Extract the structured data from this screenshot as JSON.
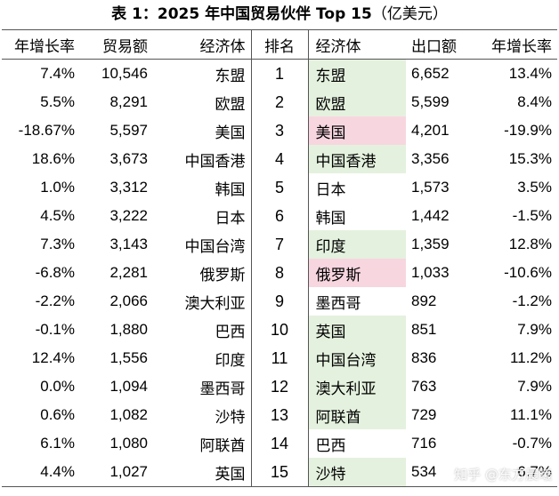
{
  "title": {
    "main": "表 1：2025 年中国贸易伙伴 Top 15",
    "sub": "（亿美元）"
  },
  "headers": [
    "年增长率",
    "贸易额",
    "经济体",
    "排名",
    "经济体",
    "出口额",
    "年增长率"
  ],
  "colors": {
    "green": "#e4f1de",
    "pink": "#f7d6e0"
  },
  "rows": [
    {
      "trade_growth": "7.4%",
      "trade_value": "10,546",
      "trade_partner": "东盟",
      "rank": "1",
      "export_partner": "东盟",
      "export_highlight": "green",
      "export_value": "6,652",
      "export_growth": "13.4%"
    },
    {
      "trade_growth": "5.5%",
      "trade_value": "8,291",
      "trade_partner": "欧盟",
      "rank": "2",
      "export_partner": "欧盟",
      "export_highlight": "green",
      "export_value": "5,599",
      "export_growth": "8.4%"
    },
    {
      "trade_growth": "-18.67%",
      "trade_value": "5,597",
      "trade_partner": "美国",
      "rank": "3",
      "export_partner": "美国",
      "export_highlight": "pink",
      "export_value": "4,201",
      "export_growth": "-19.9%"
    },
    {
      "trade_growth": "18.6%",
      "trade_value": "3,673",
      "trade_partner": "中国香港",
      "rank": "4",
      "export_partner": "中国香港",
      "export_highlight": "green",
      "export_value": "3,356",
      "export_growth": "15.3%"
    },
    {
      "trade_growth": "1.0%",
      "trade_value": "3,312",
      "trade_partner": "韩国",
      "rank": "5",
      "export_partner": "日本",
      "export_highlight": "none",
      "export_value": "1,573",
      "export_growth": "3.5%"
    },
    {
      "trade_growth": "4.5%",
      "trade_value": "3,222",
      "trade_partner": "日本",
      "rank": "6",
      "export_partner": "韩国",
      "export_highlight": "none",
      "export_value": "1,442",
      "export_growth": "-1.5%"
    },
    {
      "trade_growth": "7.3%",
      "trade_value": "3,143",
      "trade_partner": "中国台湾",
      "rank": "7",
      "export_partner": "印度",
      "export_highlight": "green",
      "export_value": "1,359",
      "export_growth": "12.8%"
    },
    {
      "trade_growth": "-6.8%",
      "trade_value": "2,281",
      "trade_partner": "俄罗斯",
      "rank": "8",
      "export_partner": "俄罗斯",
      "export_highlight": "pink",
      "export_value": "1,033",
      "export_growth": "-10.6%"
    },
    {
      "trade_growth": "-2.2%",
      "trade_value": "2,066",
      "trade_partner": "澳大利亚",
      "rank": "9",
      "export_partner": "墨西哥",
      "export_highlight": "none",
      "export_value": "892",
      "export_growth": "-1.2%"
    },
    {
      "trade_growth": "-0.1%",
      "trade_value": "1,880",
      "trade_partner": "巴西",
      "rank": "10",
      "export_partner": "英国",
      "export_highlight": "green",
      "export_value": "851",
      "export_growth": "7.9%"
    },
    {
      "trade_growth": "12.4%",
      "trade_value": "1,556",
      "trade_partner": "印度",
      "rank": "11",
      "export_partner": "中国台湾",
      "export_highlight": "green",
      "export_value": "836",
      "export_growth": "11.2%"
    },
    {
      "trade_growth": "0.0%",
      "trade_value": "1,094",
      "trade_partner": "墨西哥",
      "rank": "12",
      "export_partner": "澳大利亚",
      "export_highlight": "green",
      "export_value": "763",
      "export_growth": "7.9%"
    },
    {
      "trade_growth": "0.6%",
      "trade_value": "1,082",
      "trade_partner": "沙特",
      "rank": "13",
      "export_partner": "阿联酋",
      "export_highlight": "green",
      "export_value": "729",
      "export_growth": "11.1%"
    },
    {
      "trade_growth": "6.1%",
      "trade_value": "1,080",
      "trade_partner": "阿联酋",
      "rank": "14",
      "export_partner": "巴西",
      "export_highlight": "none",
      "export_value": "716",
      "export_growth": "-0.7%"
    },
    {
      "trade_growth": "4.4%",
      "trade_value": "1,027",
      "trade_partner": "英国",
      "rank": "15",
      "export_partner": "沙特",
      "export_highlight": "green",
      "export_value": "534",
      "export_growth": "6.7%"
    }
  ],
  "watermark": "知乎 @东方晨曦"
}
